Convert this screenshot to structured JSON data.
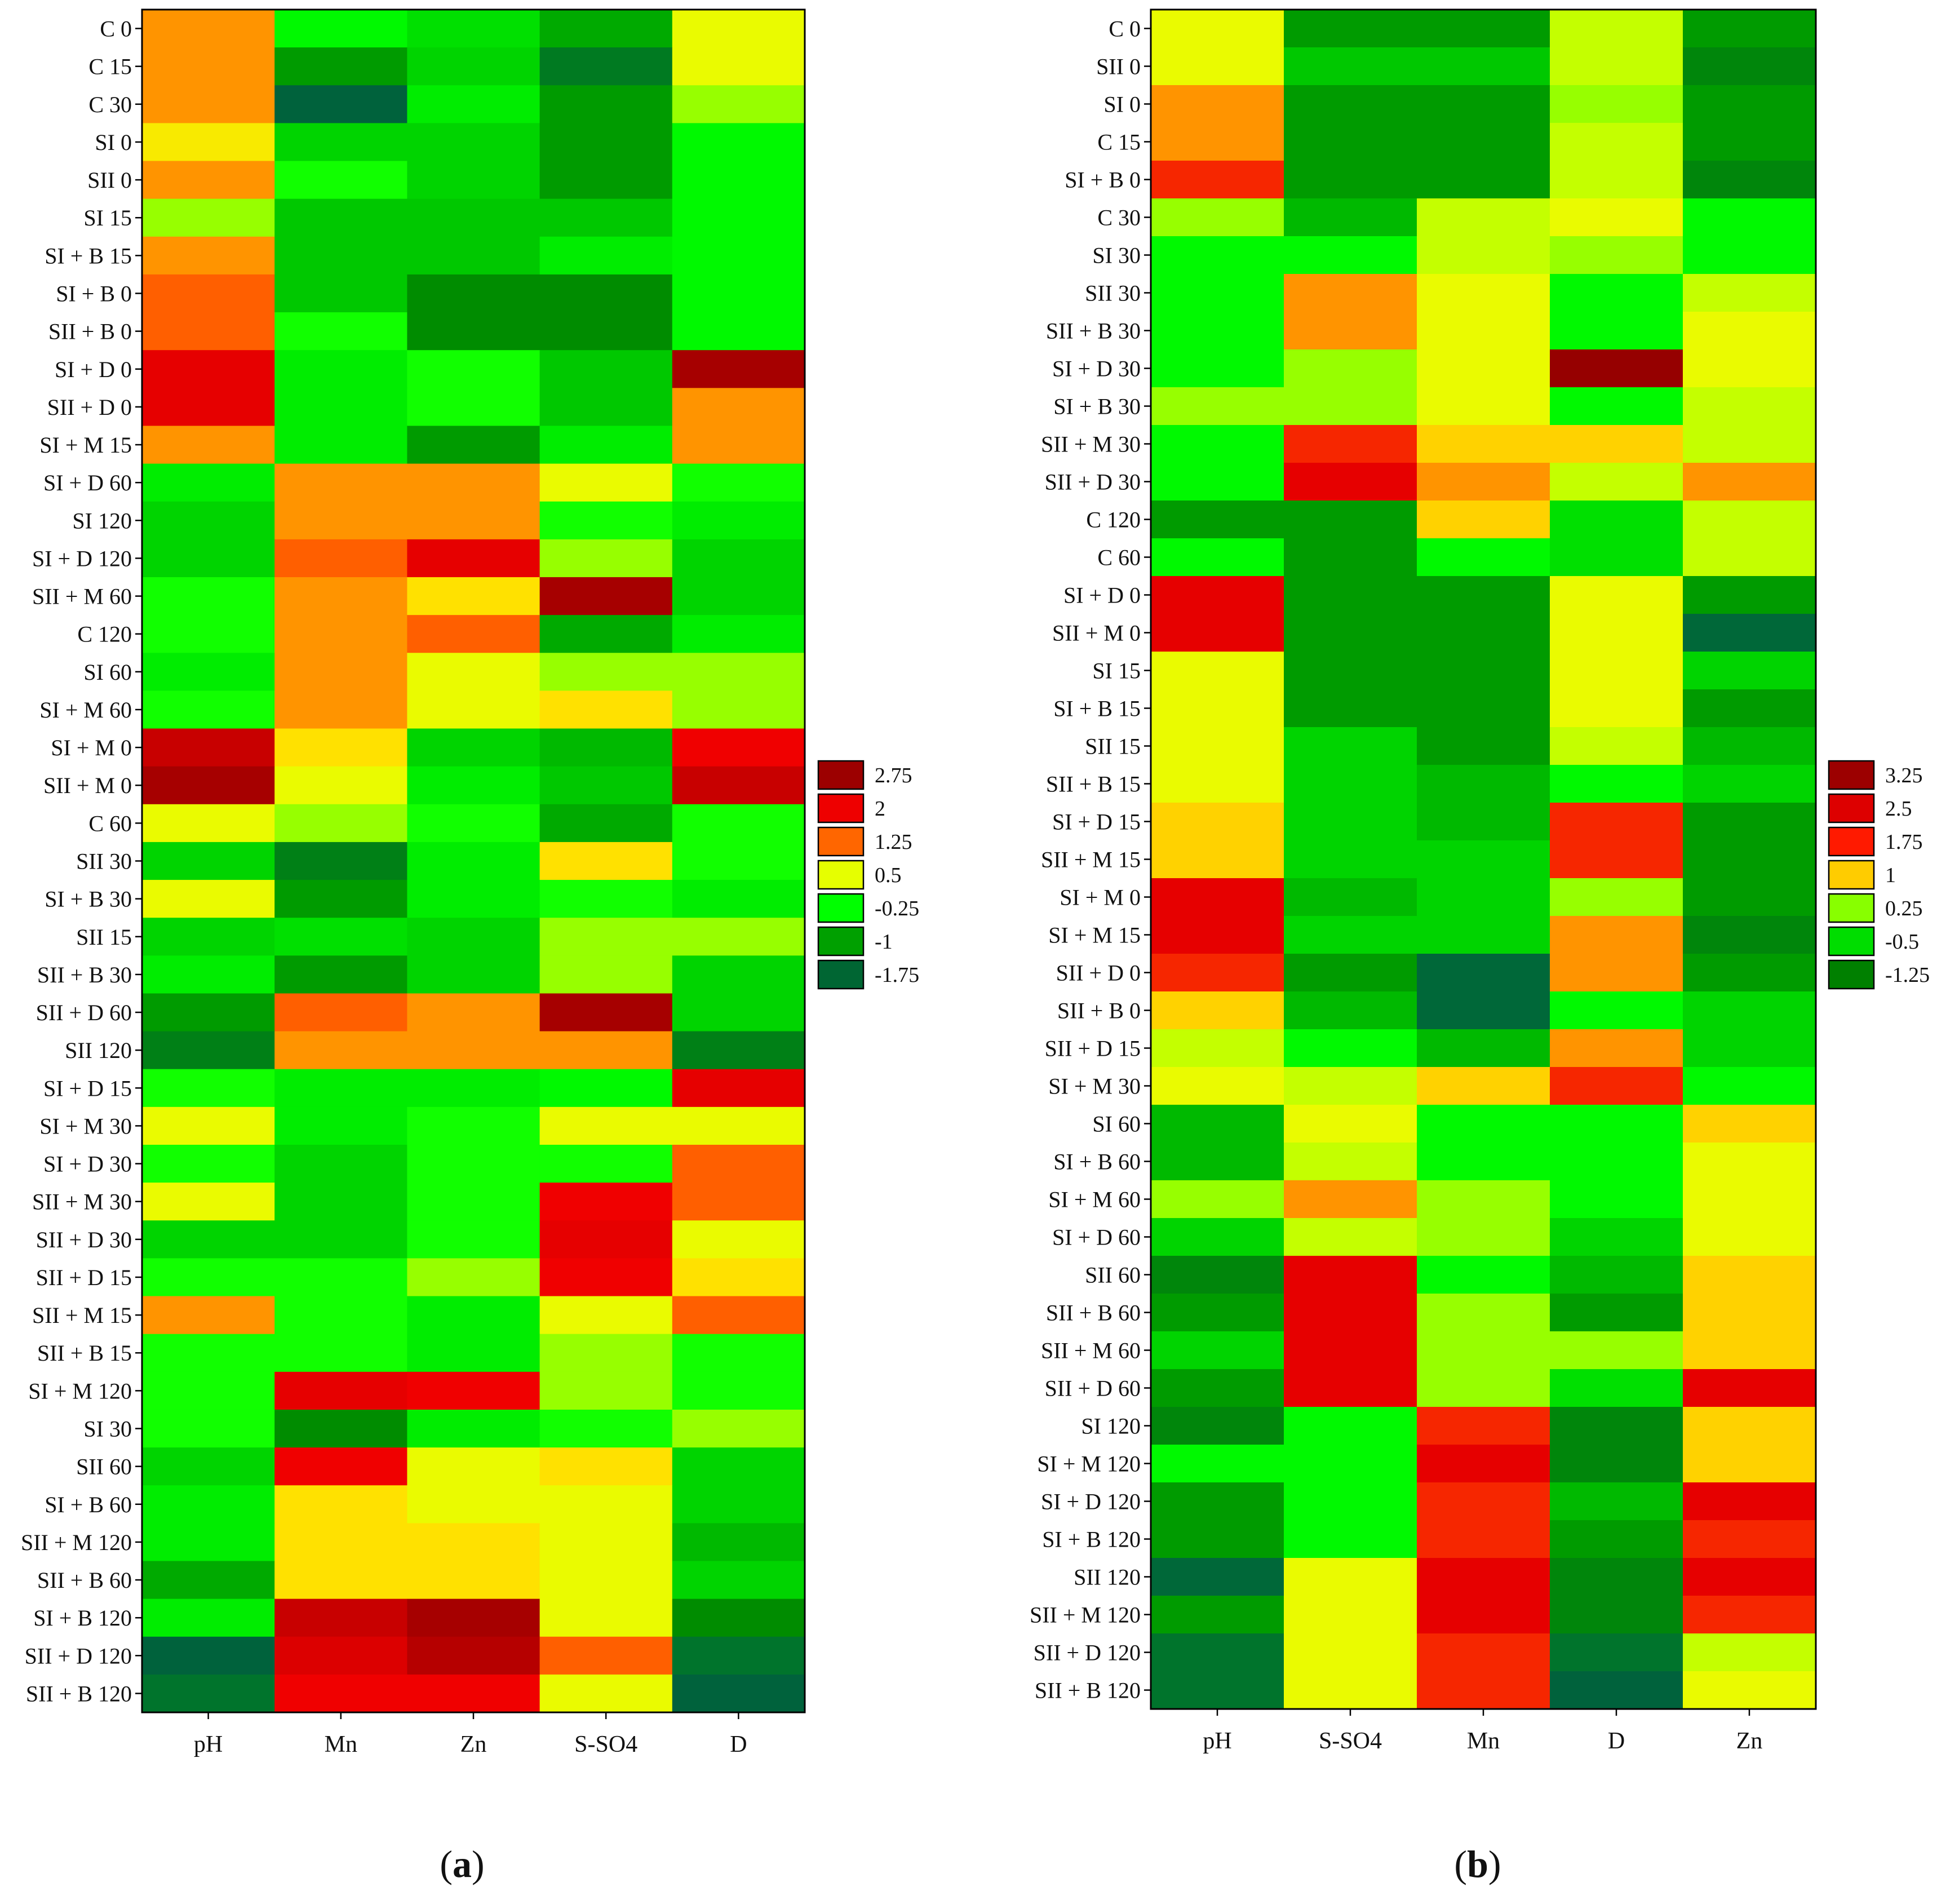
{
  "chart_data": [
    {
      "type": "heatmap",
      "panel_label": "a",
      "columns": [
        "pH",
        "Mn",
        "Zn",
        "S-SO4",
        "D"
      ],
      "rows": [
        "C 0",
        "C 15",
        "C 30",
        "SI 0",
        "SII 0",
        "SI 15",
        "SI + B 15",
        "SI + B 0",
        "SII + B 0",
        "SI + D 0",
        "SII + D 0",
        "SI + M 15",
        "SI + D 60",
        "SI 120",
        "SI + D 120",
        "SII + M 60",
        "C 120",
        "SI 60",
        "SI + M 60",
        "SI + M 0",
        "SII + M 0",
        "C 60",
        "SII 30",
        "SI + B 30",
        "SII 15",
        "SII + B 30",
        "SII + D 60",
        "SII 120",
        "SI + D 15",
        "SI + M 30",
        "SI + D 30",
        "SII + M 30",
        "SII + D 30",
        "SII + D 15",
        "SII + M 15",
        "SII + B 15",
        "SI + M 120",
        "SI 30",
        "SII 60",
        "SI + B 60",
        "SII + M 120",
        "SII + B 60",
        "SI + B 120",
        "SII + D 120",
        "SII + B 120"
      ],
      "values": [
        [
          1.4,
          -0.3,
          -0.5,
          -0.9,
          0.6
        ],
        [
          1.4,
          -1.0,
          -0.6,
          -1.4,
          0.6
        ],
        [
          1.4,
          -1.8,
          -0.4,
          -1.0,
          0.2
        ],
        [
          0.8,
          -0.6,
          -0.6,
          -1.0,
          -0.3
        ],
        [
          1.4,
          -0.2,
          -0.6,
          -1.0,
          -0.3
        ],
        [
          0.2,
          -0.7,
          -0.7,
          -0.7,
          -0.3
        ],
        [
          1.4,
          -0.7,
          -0.7,
          -0.4,
          -0.3
        ],
        [
          1.7,
          -0.7,
          -1.1,
          -1.1,
          -0.3
        ],
        [
          1.7,
          -0.2,
          -1.1,
          -1.1,
          -0.3
        ],
        [
          2.3,
          -0.4,
          -0.2,
          -0.7,
          3.0
        ],
        [
          2.3,
          -0.4,
          -0.2,
          -0.7,
          1.4
        ],
        [
          1.4,
          -0.4,
          -1.0,
          -0.4,
          1.4
        ],
        [
          -0.4,
          1.4,
          1.4,
          0.6,
          -0.2
        ],
        [
          -0.6,
          1.4,
          1.4,
          -0.2,
          -0.4
        ],
        [
          -0.6,
          1.7,
          2.3,
          0.2,
          -0.6
        ],
        [
          -0.2,
          1.4,
          0.9,
          3.0,
          -0.6
        ],
        [
          -0.2,
          1.4,
          1.7,
          -0.9,
          -0.4
        ],
        [
          -0.4,
          1.4,
          0.6,
          0.2,
          0.2
        ],
        [
          -0.2,
          1.4,
          0.6,
          0.9,
          0.2
        ],
        [
          2.6,
          0.9,
          -0.6,
          -0.8,
          2.2
        ],
        [
          3.0,
          0.6,
          -0.4,
          -0.7,
          2.6
        ],
        [
          0.6,
          0.2,
          -0.2,
          -0.9,
          -0.2
        ],
        [
          -0.6,
          -1.3,
          -0.4,
          0.9,
          -0.2
        ],
        [
          0.6,
          -1.0,
          -0.4,
          -0.2,
          -0.4
        ],
        [
          -0.6,
          -0.5,
          -0.6,
          0.2,
          0.2
        ],
        [
          -0.4,
          -1.0,
          -0.6,
          0.2,
          -0.6
        ],
        [
          -1.0,
          1.7,
          1.4,
          3.0,
          -0.6
        ],
        [
          -1.3,
          1.4,
          1.4,
          1.4,
          -1.3
        ],
        [
          -0.2,
          -0.4,
          -0.4,
          -0.3,
          2.3
        ],
        [
          0.6,
          -0.4,
          -0.2,
          0.6,
          0.6
        ],
        [
          -0.2,
          -0.6,
          -0.2,
          -0.2,
          1.7
        ],
        [
          0.6,
          -0.6,
          -0.2,
          2.2,
          1.7
        ],
        [
          -0.6,
          -0.6,
          -0.2,
          2.3,
          0.6
        ],
        [
          -0.2,
          -0.2,
          0.2,
          2.2,
          0.9
        ],
        [
          1.4,
          -0.2,
          -0.4,
          0.6,
          1.7
        ],
        [
          -0.2,
          -0.2,
          -0.4,
          0.2,
          -0.2
        ],
        [
          -0.2,
          2.3,
          2.2,
          0.2,
          -0.2
        ],
        [
          -0.2,
          -1.1,
          -0.4,
          -0.2,
          0.2
        ],
        [
          -0.6,
          2.2,
          0.6,
          0.9,
          -0.6
        ],
        [
          -0.4,
          0.9,
          0.6,
          0.6,
          -0.6
        ],
        [
          -0.4,
          0.9,
          0.9,
          0.6,
          -0.8
        ],
        [
          -0.9,
          0.9,
          0.9,
          0.6,
          -0.6
        ],
        [
          -0.4,
          2.6,
          3.0,
          0.6,
          -1.1
        ],
        [
          -1.8,
          2.4,
          2.8,
          1.7,
          -1.5
        ],
        [
          -1.5,
          2.2,
          2.2,
          0.6,
          -1.8
        ]
      ],
      "legend": {
        "labels": [
          "2.75",
          "2",
          "1.25",
          "0.5",
          "-0.25",
          "-1",
          "-1.75"
        ],
        "colors": [
          "#9c0000",
          "#ee0000",
          "#ff6600",
          "#e6ff00",
          "#00ff00",
          "#00a000",
          "#006633"
        ]
      }
    },
    {
      "type": "heatmap",
      "panel_label": "b",
      "columns": [
        "pH",
        "S-SO4",
        "Mn",
        "D",
        "Zn"
      ],
      "rows": [
        "C 0",
        "SII 0",
        "SI 0",
        "C 15",
        "SI + B 0",
        "C 30",
        "SI 30",
        "SII 30",
        "SII + B 30",
        "SI + D 30",
        "SI + B 30",
        "SII + M 30",
        "SII + D 30",
        "C 120",
        "C 60",
        "SI + D 0",
        "SII + M 0",
        "SI 15",
        "SI + B 15",
        "SII 15",
        "SII + B 15",
        "SI + D 15",
        "SII + M 15",
        "SI + M 0",
        "SI + M 15",
        "SII + D 0",
        "SII + B 0",
        "SII + D 15",
        "SI + M 30",
        "SI 60",
        "SI + B 60",
        "SI + M 60",
        "SI + D 60",
        "SII 60",
        "SII + B 60",
        "SII + M 60",
        "SII + D 60",
        "SI 120",
        "SI + M 120",
        "SI + D 120",
        "SI + B 120",
        "SII 120",
        "SII + M 120",
        "SII + D 120",
        "SII + B 120"
      ],
      "values": [
        [
          0.6,
          -1.0,
          -1.0,
          0.4,
          -1.0
        ],
        [
          0.6,
          -0.7,
          -0.7,
          0.4,
          -1.2
        ],
        [
          1.4,
          -1.0,
          -1.0,
          0.2,
          -1.0
        ],
        [
          1.4,
          -1.0,
          -1.0,
          0.4,
          -1.0
        ],
        [
          2.0,
          -1.0,
          -1.0,
          0.4,
          -1.2
        ],
        [
          0.2,
          -0.8,
          0.4,
          0.6,
          -0.3
        ],
        [
          -0.3,
          -0.3,
          0.4,
          0.2,
          -0.3
        ],
        [
          -0.3,
          1.4,
          0.6,
          -0.3,
          0.4
        ],
        [
          -0.3,
          1.4,
          0.6,
          -0.3,
          0.6
        ],
        [
          -0.3,
          0.2,
          0.6,
          3.4,
          0.6
        ],
        [
          0.2,
          0.2,
          0.6,
          -0.3,
          0.4
        ],
        [
          -0.3,
          2.0,
          1.0,
          1.0,
          0.4
        ],
        [
          -0.3,
          2.3,
          1.4,
          0.4,
          1.4
        ],
        [
          -1.0,
          -1.0,
          1.0,
          -0.5,
          0.4
        ],
        [
          -0.3,
          -1.0,
          -0.3,
          -0.5,
          0.4
        ],
        [
          2.3,
          -1.0,
          -1.0,
          0.6,
          -1.0
        ],
        [
          2.3,
          -1.0,
          -1.0,
          0.6,
          -1.7
        ],
        [
          0.6,
          -1.0,
          -1.0,
          0.6,
          -0.6
        ],
        [
          0.6,
          -1.0,
          -1.0,
          0.6,
          -1.0
        ],
        [
          0.6,
          -0.6,
          -1.0,
          0.4,
          -0.8
        ],
        [
          0.6,
          -0.6,
          -0.8,
          -0.3,
          -0.6
        ],
        [
          1.0,
          -0.6,
          -0.8,
          2.0,
          -1.0
        ],
        [
          1.0,
          -0.6,
          -0.6,
          2.0,
          -1.0
        ],
        [
          2.3,
          -0.8,
          -0.6,
          0.2,
          -1.0
        ],
        [
          2.3,
          -0.6,
          -0.6,
          1.4,
          -1.2
        ],
        [
          2.0,
          -1.0,
          -1.7,
          1.4,
          -1.0
        ],
        [
          1.0,
          -0.8,
          -1.7,
          -0.3,
          -0.6
        ],
        [
          0.4,
          -0.3,
          -0.8,
          1.4,
          -0.6
        ],
        [
          0.6,
          0.4,
          1.0,
          2.0,
          -0.3
        ],
        [
          -0.8,
          0.6,
          -0.3,
          -0.3,
          1.0
        ],
        [
          -0.8,
          0.4,
          -0.3,
          -0.3,
          0.6
        ],
        [
          0.2,
          1.4,
          0.2,
          -0.3,
          0.6
        ],
        [
          -0.6,
          0.4,
          0.2,
          -0.6,
          0.6
        ],
        [
          -1.2,
          2.3,
          -0.3,
          -0.8,
          1.0
        ],
        [
          -1.0,
          2.3,
          0.2,
          -1.0,
          1.0
        ],
        [
          -0.6,
          2.3,
          0.2,
          0.2,
          1.0
        ],
        [
          -1.0,
          2.3,
          0.2,
          -0.5,
          2.3
        ],
        [
          -1.2,
          -0.3,
          2.0,
          -1.2,
          1.0
        ],
        [
          -0.3,
          -0.3,
          2.3,
          -1.2,
          1.0
        ],
        [
          -1.0,
          -0.3,
          2.0,
          -0.8,
          2.3
        ],
        [
          -1.0,
          -0.3,
          2.0,
          -1.0,
          2.0
        ],
        [
          -1.7,
          0.6,
          2.3,
          -1.2,
          2.3
        ],
        [
          -1.0,
          0.6,
          2.3,
          -1.2,
          2.0
        ],
        [
          -1.5,
          0.6,
          2.0,
          -1.5,
          0.4
        ],
        [
          -1.5,
          0.6,
          2.0,
          -1.8,
          0.6
        ]
      ],
      "legend": {
        "labels": [
          "3.25",
          "2.5",
          "1.75",
          "1",
          "0.25",
          "-0.5",
          "-1.25"
        ],
        "colors": [
          "#9c0000",
          "#dd0000",
          "#ff1a00",
          "#ffcc00",
          "#88ff00",
          "#00dd00",
          "#008000"
        ]
      }
    }
  ]
}
